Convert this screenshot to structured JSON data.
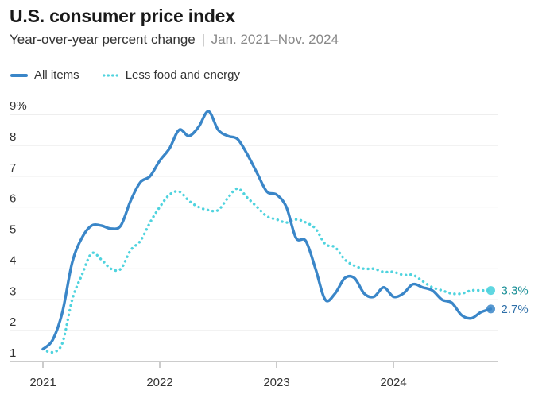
{
  "chart_data": {
    "type": "line",
    "title": "U.S. consumer price index",
    "subtitle": "Year-over-year percent change",
    "subtitle_separator": "|",
    "date_range": "Jan. 2021–Nov. 2024",
    "xlabel": "",
    "ylabel": "",
    "ylim": [
      1,
      9
    ],
    "yticks": [
      1,
      2,
      3,
      4,
      5,
      6,
      7,
      8,
      9
    ],
    "ytick_labels": [
      "1",
      "2",
      "3",
      "4",
      "5",
      "6",
      "7",
      "8",
      "9%"
    ],
    "xticks": [
      2021,
      2022,
      2023,
      2024
    ],
    "xtick_labels": [
      "2021",
      "2022",
      "2023",
      "2024"
    ],
    "x_start": 2021.0,
    "x_step_months": 1,
    "grid": true,
    "legend_position": "top-left",
    "series": [
      {
        "name": "All items",
        "color": "#3a86c8",
        "style": "solid",
        "end_label": "2.7%",
        "values": [
          1.4,
          1.7,
          2.6,
          4.2,
          5.0,
          5.4,
          5.4,
          5.3,
          5.4,
          6.2,
          6.8,
          7.0,
          7.5,
          7.9,
          8.5,
          8.3,
          8.6,
          9.1,
          8.5,
          8.3,
          8.2,
          7.7,
          7.1,
          6.5,
          6.4,
          6.0,
          5.0,
          4.9,
          4.0,
          3.0,
          3.2,
          3.7,
          3.7,
          3.2,
          3.1,
          3.4,
          3.1,
          3.2,
          3.5,
          3.4,
          3.3,
          3.0,
          2.9,
          2.5,
          2.4,
          2.6,
          2.7
        ]
      },
      {
        "name": "Less food and energy",
        "color": "#4fd3de",
        "style": "dotted",
        "end_label": "3.3%",
        "values": [
          1.4,
          1.3,
          1.6,
          3.0,
          3.8,
          4.5,
          4.3,
          4.0,
          4.0,
          4.6,
          4.9,
          5.5,
          6.0,
          6.4,
          6.5,
          6.2,
          6.0,
          5.9,
          5.9,
          6.3,
          6.6,
          6.3,
          6.0,
          5.7,
          5.6,
          5.5,
          5.6,
          5.5,
          5.3,
          4.8,
          4.7,
          4.3,
          4.1,
          4.0,
          4.0,
          3.9,
          3.9,
          3.8,
          3.8,
          3.6,
          3.4,
          3.3,
          3.2,
          3.2,
          3.3,
          3.3,
          3.3
        ]
      }
    ]
  }
}
